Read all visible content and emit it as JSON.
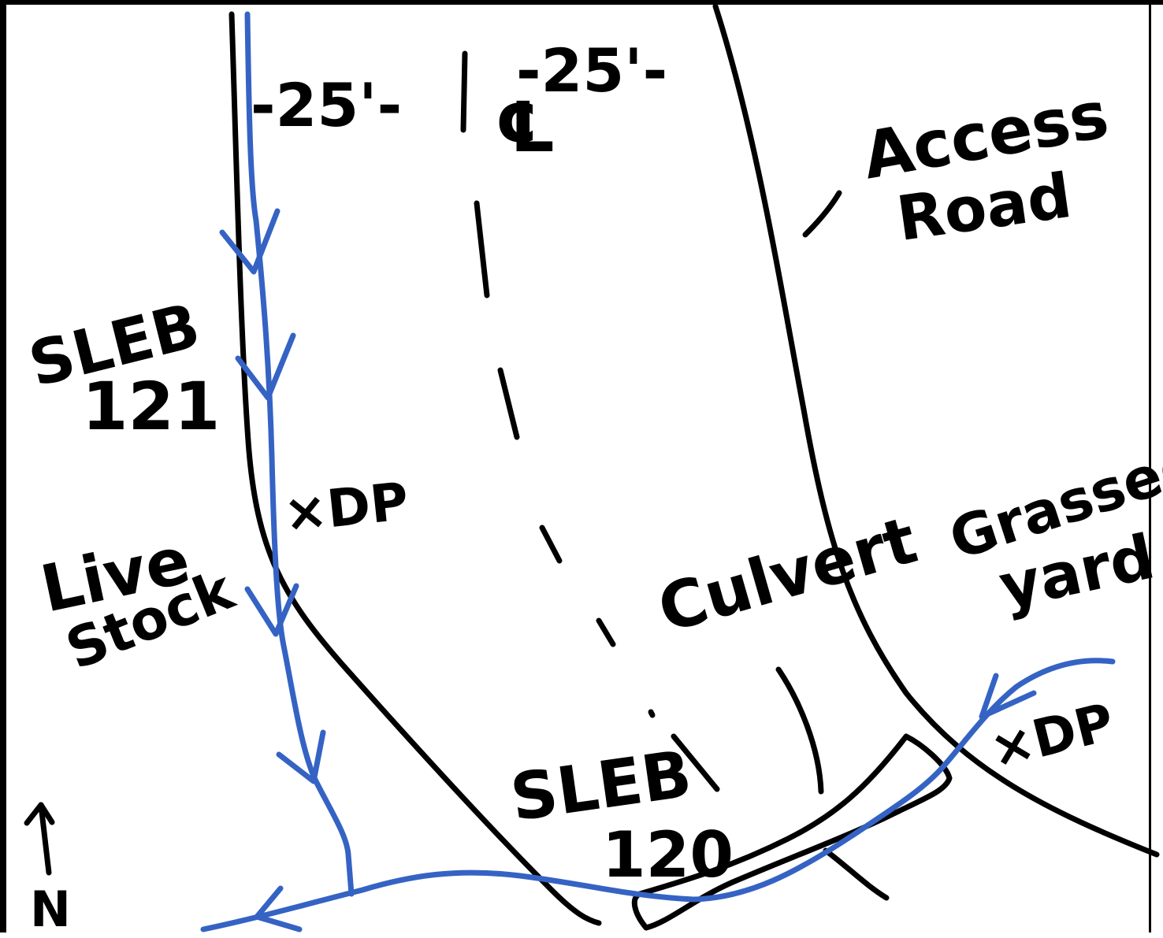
{
  "labels": {
    "dim_left": "-25'-",
    "dim_right": "-25'-",
    "centerline": "℄",
    "access_road_1": "Access",
    "access_road_2": "Road",
    "sleb121_1": "SLEB",
    "sleb121_2": "121",
    "dp_upper": "×DP",
    "livestock_1": "Live",
    "livestock_2": "Stock",
    "culvert": "Culvert",
    "grassed_1": "Grassed",
    "grassed_2": "yard",
    "dp_lower": "×DP",
    "sleb120_1": "SLEB",
    "sleb120_2": "120",
    "north": "N"
  },
  "colors": {
    "ink": "#000000",
    "flow": "#3563c4"
  }
}
